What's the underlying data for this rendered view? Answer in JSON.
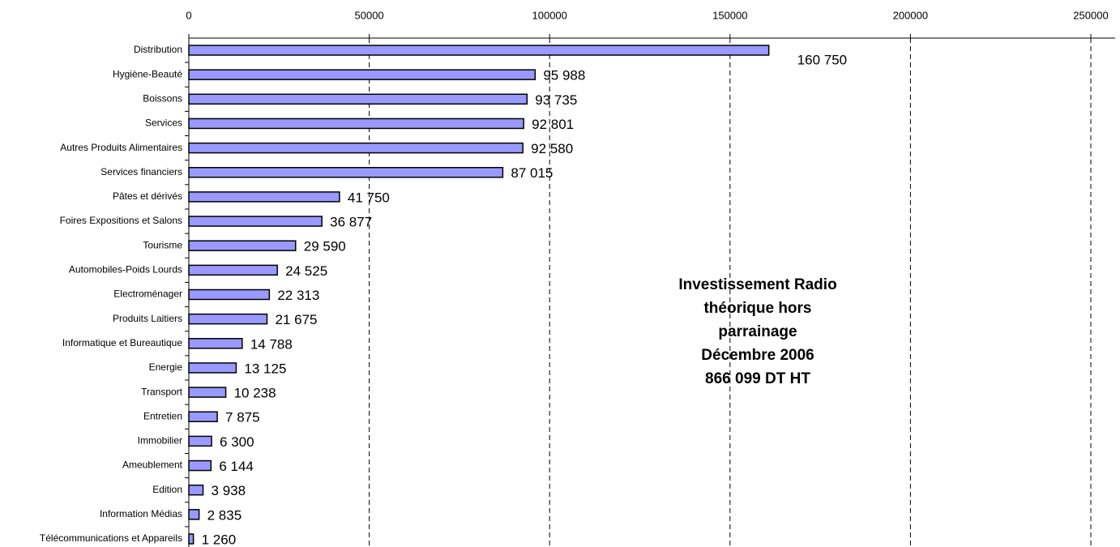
{
  "chart_data": {
    "type": "bar",
    "orientation": "horizontal",
    "categories": [
      "Distribution",
      "Hygiène-Beauté",
      "Boissons",
      "Services",
      "Autres Produits Alimentaires",
      "Services financiers",
      "Pâtes et dérivés",
      "Foires Expositions et Salons",
      "Tourisme",
      "Automobiles-Poids Lourds",
      "Electroménager",
      "Produits Laitiers",
      "Informatique et Bureautique",
      "Energie",
      "Transport",
      "Entretien",
      "Immobilier",
      "Ameublement",
      "Edition",
      "Information Médias",
      "Télécommunications et Appareils"
    ],
    "values": [
      160750,
      95988,
      93735,
      92801,
      92580,
      87015,
      41750,
      36877,
      29590,
      24525,
      22313,
      21675,
      14788,
      13125,
      10238,
      7875,
      6300,
      6144,
      3938,
      2835,
      1260
    ],
    "value_labels": [
      "160 750",
      "95 988",
      "93 735",
      "92 801",
      "92 580",
      "87 015",
      "41 750",
      "36 877",
      "29 590",
      "24 525",
      "22 313",
      "21 675",
      "14 788",
      "13 125",
      "10 238",
      "7 875",
      "6 300",
      "6 144",
      "3 938",
      "2 835",
      "1 260"
    ],
    "color": "#9999ff",
    "xlim": [
      0,
      250000
    ],
    "xticks": [
      0,
      50000,
      100000,
      150000,
      200000,
      250000
    ],
    "grid": true,
    "annotation": [
      "Investissement Radio",
      "théorique hors",
      "parrainage",
      "Décembre 2006",
      "866 099 DT HT"
    ]
  }
}
